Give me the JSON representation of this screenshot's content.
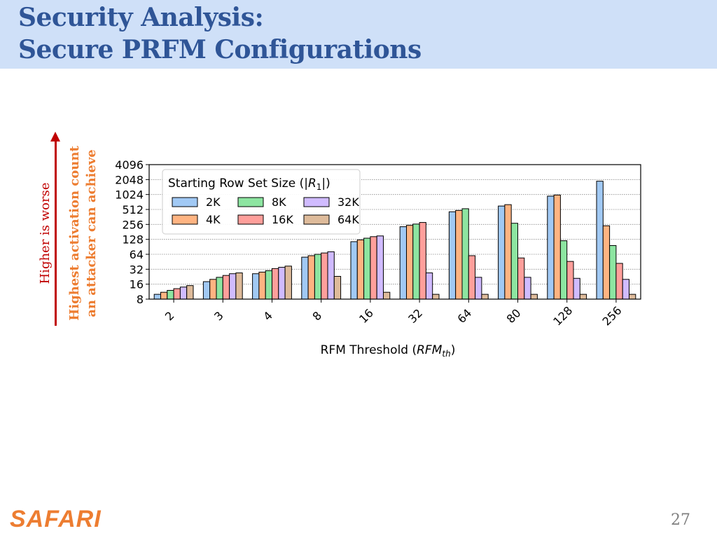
{
  "slide": {
    "title_line1": "Security Analysis:",
    "title_line2": "Secure PRFM Configurations",
    "side_label_worse": "Higher is worse",
    "side_label_count_line1": "Highest activation count",
    "side_label_count_line2": "an attacker can achieve",
    "footer_logo": "SAFARI",
    "page_number": "27",
    "colors": {
      "header_bg": "#cfe0f8",
      "title": "#2f5597",
      "worse": "#c00000",
      "count": "#ed7d31",
      "logo": "#ed7d31"
    }
  },
  "chart_data": {
    "type": "bar",
    "xlabel_main": "RFM Threshold (",
    "xlabel_sym": "RFM",
    "xlabel_sub": "th",
    "xlabel_end": ")",
    "y_scale": "log2",
    "ylim": [
      8,
      4096
    ],
    "y_ticks": [
      "8",
      "16",
      "32",
      "64",
      "128",
      "256",
      "512",
      "1024",
      "2048",
      "4096"
    ],
    "grid": "horizontal dotted",
    "legend_title_main": "Starting Row Set Size (|",
    "legend_title_sym": "R",
    "legend_title_sub": "1",
    "legend_title_end": "|)",
    "legend_position": "top-left",
    "categories": [
      "2",
      "3",
      "4",
      "8",
      "16",
      "32",
      "64",
      "80",
      "128",
      "256"
    ],
    "series": [
      {
        "name": "2K",
        "color": "#a1c9f4",
        "values": [
          10,
          18,
          26,
          56,
          115,
          230,
          460,
          600,
          950,
          1900
        ]
      },
      {
        "name": "4K",
        "color": "#ffb482",
        "values": [
          11,
          20,
          28,
          60,
          125,
          245,
          490,
          640,
          1000,
          240
        ]
      },
      {
        "name": "8K",
        "color": "#8de5a1",
        "values": [
          12,
          22,
          30,
          64,
          135,
          260,
          530,
          270,
          120,
          96
        ]
      },
      {
        "name": "16K",
        "color": "#ff9f9b",
        "values": [
          13,
          24,
          33,
          68,
          145,
          280,
          60,
          54,
          46,
          42
        ]
      },
      {
        "name": "32K",
        "color": "#d0bbff",
        "values": [
          14,
          26,
          35,
          72,
          150,
          27,
          22,
          22,
          21,
          20
        ]
      },
      {
        "name": "64K",
        "color": "#debb9b",
        "values": [
          15,
          27,
          37,
          23,
          11,
          10,
          10,
          10,
          10,
          10
        ]
      }
    ]
  }
}
